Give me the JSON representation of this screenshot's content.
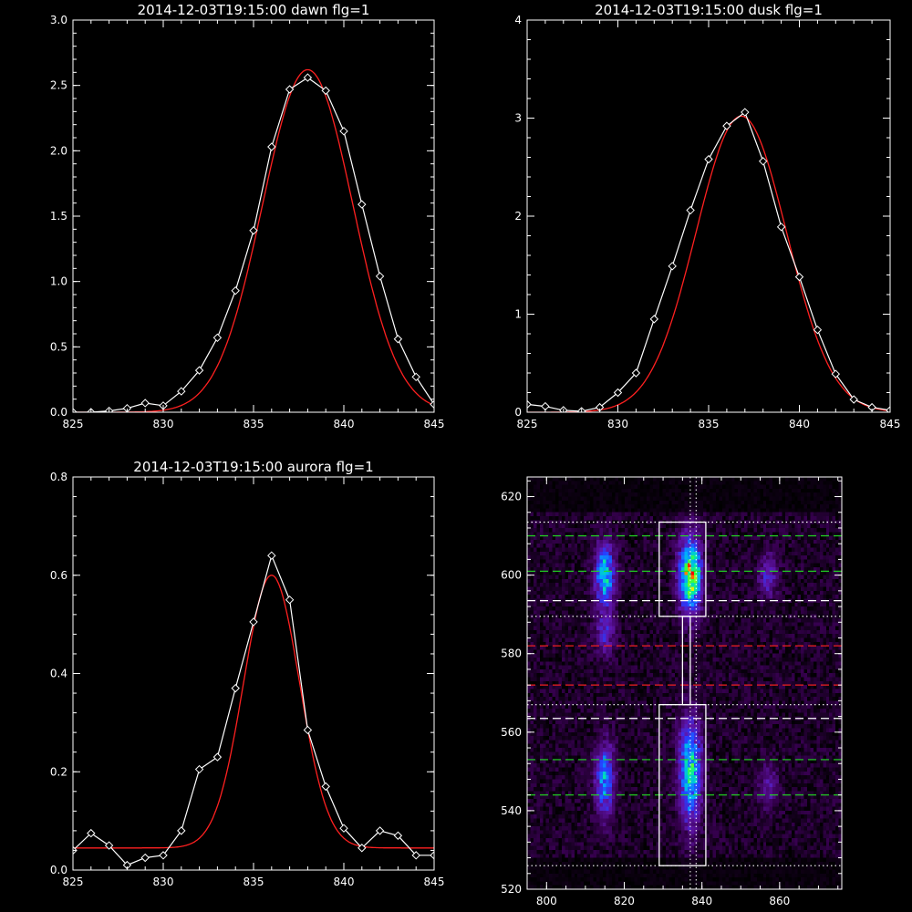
{
  "chart_data": [
    {
      "type": "line",
      "title": "2014-12-03T19:15:00 dawn flg=1",
      "xlim": [
        825,
        845
      ],
      "ylim": [
        0,
        3.0
      ],
      "xticks": [
        825,
        830,
        835,
        840,
        845
      ],
      "xtick_labels": [
        "825",
        "830",
        "835",
        "840",
        "845"
      ],
      "yticks": [
        0,
        0.5,
        1.0,
        1.5,
        2.0,
        2.5,
        3.0
      ],
      "ytick_labels": [
        "0.0",
        "0.5",
        "1.0",
        "1.5",
        "2.0",
        "2.5",
        "3.0"
      ],
      "series": [
        {
          "style": "line-diamond-markers",
          "color": "#ffffff",
          "x": [
            825,
            826,
            827,
            828,
            829,
            830,
            831,
            832,
            833,
            834,
            835,
            836,
            837,
            838,
            839,
            840,
            841,
            842,
            843,
            844,
            845
          ],
          "y": [
            0.0,
            0.0,
            0.01,
            0.03,
            0.07,
            0.05,
            0.16,
            0.32,
            0.57,
            0.93,
            1.39,
            2.03,
            2.47,
            2.56,
            2.46,
            2.15,
            1.59,
            1.04,
            0.56,
            0.27,
            0.06
          ]
        },
        {
          "style": "smooth-fit",
          "color": "#ff2020",
          "fit": {
            "amplitude": 2.62,
            "center": 838.0,
            "sigma": 2.5,
            "offset": 0.0
          }
        }
      ]
    },
    {
      "type": "line",
      "title": "2014-12-03T19:15:00 dusk flg=1",
      "xlim": [
        825,
        845
      ],
      "ylim": [
        0,
        4
      ],
      "xticks": [
        825,
        830,
        835,
        840,
        845
      ],
      "xtick_labels": [
        "825",
        "830",
        "835",
        "840",
        "845"
      ],
      "yticks": [
        0,
        1,
        2,
        3,
        4
      ],
      "ytick_labels": [
        "0",
        "1",
        "2",
        "3",
        "4"
      ],
      "series": [
        {
          "style": "line-diamond-markers",
          "color": "#ffffff",
          "x": [
            825,
            826,
            827,
            828,
            829,
            830,
            831,
            832,
            833,
            834,
            835,
            836,
            837,
            838,
            839,
            840,
            841,
            842,
            843,
            844,
            845
          ],
          "y": [
            0.08,
            0.06,
            0.02,
            0.01,
            0.05,
            0.2,
            0.4,
            0.95,
            1.49,
            2.06,
            2.58,
            2.92,
            3.06,
            2.56,
            1.89,
            1.38,
            0.84,
            0.39,
            0.13,
            0.05,
            0.02
          ]
        },
        {
          "style": "smooth-fit",
          "color": "#ff2020",
          "fit": {
            "amplitude": 3.02,
            "center": 836.8,
            "sigma": 2.5,
            "offset": 0.0
          }
        }
      ]
    },
    {
      "type": "line",
      "title": "2014-12-03T19:15:00 aurora flg=1",
      "xlim": [
        825,
        845
      ],
      "ylim": [
        0,
        0.8
      ],
      "xticks": [
        825,
        830,
        835,
        840,
        845
      ],
      "xtick_labels": [
        "825",
        "830",
        "835",
        "840",
        "845"
      ],
      "yticks": [
        0,
        0.2,
        0.4,
        0.6,
        0.8
      ],
      "ytick_labels": [
        "0.0",
        "0.2",
        "0.4",
        "0.6",
        "0.8"
      ],
      "series": [
        {
          "style": "line-diamond-markers",
          "color": "#ffffff",
          "x": [
            825,
            826,
            827,
            828,
            829,
            830,
            831,
            832,
            833,
            834,
            835,
            836,
            837,
            838,
            839,
            840,
            841,
            842,
            843,
            844,
            845
          ],
          "y": [
            0.04,
            0.075,
            0.05,
            0.01,
            0.025,
            0.03,
            0.08,
            0.205,
            0.23,
            0.37,
            0.505,
            0.64,
            0.55,
            0.285,
            0.17,
            0.085,
            0.045,
            0.08,
            0.07,
            0.03,
            0.03
          ]
        },
        {
          "style": "smooth-fit",
          "color": "#ff2020",
          "fit": {
            "amplitude": 0.555,
            "center": 836.0,
            "sigma": 1.55,
            "offset": 0.045
          }
        }
      ]
    },
    {
      "type": "heatmap",
      "title": "",
      "xlim": [
        795,
        876
      ],
      "ylim": [
        520,
        625
      ],
      "xticks": [
        800,
        820,
        840,
        860
      ],
      "xtick_labels": [
        "800",
        "820",
        "840",
        "860"
      ],
      "yticks": [
        520,
        540,
        560,
        580,
        600,
        620
      ],
      "ytick_labels": [
        "520",
        "540",
        "560",
        "580",
        "600",
        "620"
      ],
      "colormap": "rainbow",
      "blobs": [
        {
          "x": 815,
          "y": 600,
          "sx": 1.8,
          "sy": 5.5,
          "amp": 0.55
        },
        {
          "x": 815,
          "y": 585,
          "sx": 1.8,
          "sy": 4.0,
          "amp": 0.25
        },
        {
          "x": 815,
          "y": 548,
          "sx": 1.8,
          "sy": 6.5,
          "amp": 0.45
        },
        {
          "x": 837,
          "y": 600,
          "sx": 2.0,
          "sy": 6.5,
          "amp": 0.8
        },
        {
          "x": 837,
          "y": 550,
          "sx": 2.0,
          "sy": 9.0,
          "amp": 0.6
        },
        {
          "x": 857,
          "y": 600,
          "sx": 1.8,
          "sy": 4.0,
          "amp": 0.25
        },
        {
          "x": 857,
          "y": 546,
          "sx": 1.8,
          "sy": 4.0,
          "amp": 0.2
        }
      ],
      "overlay": {
        "hlines": [
          {
            "y": 610,
            "color": "#22dd22",
            "style": "dashed"
          },
          {
            "y": 601,
            "color": "#22dd22",
            "style": "dashed"
          },
          {
            "y": 593.5,
            "color": "#ffffff",
            "style": "dashed"
          },
          {
            "y": 582,
            "color": "#ee2020",
            "style": "dashed"
          },
          {
            "y": 572,
            "color": "#ee2020",
            "style": "dashed"
          },
          {
            "y": 563.5,
            "color": "#ffffff",
            "style": "dashed"
          },
          {
            "y": 553,
            "color": "#22dd22",
            "style": "dashed"
          },
          {
            "y": 544,
            "color": "#22dd22",
            "style": "dashed"
          },
          {
            "y": 613.5,
            "color": "#ffffff",
            "style": "dotted"
          },
          {
            "y": 589.5,
            "color": "#ffffff",
            "style": "dotted"
          },
          {
            "y": 567,
            "color": "#ffffff",
            "style": "dotted"
          },
          {
            "y": 526,
            "color": "#ffffff",
            "style": "dotted"
          }
        ],
        "vlines": [
          {
            "x": 837,
            "color": "#ffffff",
            "style": "dotted"
          },
          {
            "x": 838.5,
            "color": "#ffffff",
            "style": "dotted"
          }
        ],
        "boxes": [
          {
            "x0": 829,
            "x1": 841,
            "y0": 589.5,
            "y1": 613.5,
            "color": "#ffffff"
          },
          {
            "x0": 829,
            "x1": 841,
            "y0": 526,
            "y1": 567,
            "color": "#ffffff"
          },
          {
            "x0": 835,
            "x1": 837,
            "y0": 567,
            "y1": 589.5,
            "color": "#ffffff"
          }
        ]
      }
    }
  ]
}
